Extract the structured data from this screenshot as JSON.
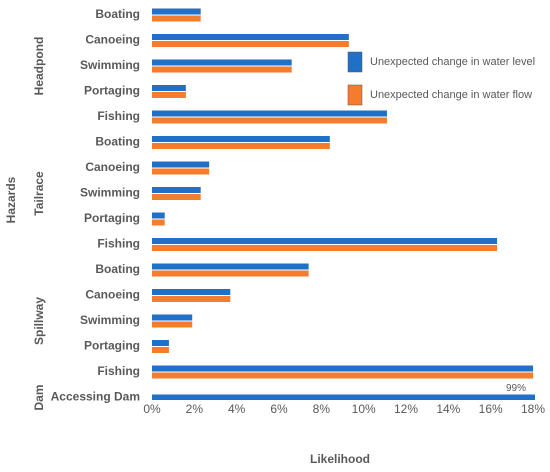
{
  "chart_data": {
    "type": "hbar",
    "y_label": "Hazards",
    "x_label": "Likelihood",
    "groups": [
      {
        "name": "Headpond",
        "categories": [
          "Boating",
          "Canoeing",
          "Swimming",
          "Portaging",
          "Fishing"
        ]
      },
      {
        "name": "Tailrace",
        "categories": [
          "Boating",
          "Canoeing",
          "Swimming",
          "Portaging",
          "Fishing"
        ]
      },
      {
        "name": "Spillway",
        "categories": [
          "Boating",
          "Canoeing",
          "Swimming",
          "Portaging",
          "Fishing"
        ]
      },
      {
        "name": "Dam",
        "categories": [
          "Accessing Dam"
        ]
      }
    ],
    "series": [
      {
        "name": "Unexpected change in water level",
        "color": "#1f70c6",
        "values": [
          2.3,
          9.3,
          6.6,
          1.6,
          11.1,
          8.4,
          2.7,
          2.3,
          0.6,
          16.3,
          7.4,
          3.7,
          1.9,
          0.8,
          18,
          99
        ],
        "value_labels": [
          null,
          null,
          null,
          null,
          null,
          null,
          null,
          null,
          null,
          null,
          null,
          null,
          null,
          null,
          null,
          "99%"
        ]
      },
      {
        "name": "Unexpected change in water flow",
        "color": "#f47c2c",
        "values": [
          2.3,
          9.3,
          6.6,
          1.6,
          11.1,
          8.4,
          2.7,
          2.3,
          0.6,
          16.3,
          7.4,
          3.7,
          1.9,
          0.8,
          18,
          null
        ]
      }
    ],
    "xlim": [
      0,
      18
    ],
    "xticks": [
      {
        "value": 0,
        "label": "0%"
      },
      {
        "value": 2,
        "label": "2%"
      },
      {
        "value": 4,
        "label": "4%"
      },
      {
        "value": 6,
        "label": "6%"
      },
      {
        "value": 8,
        "label": "8%"
      },
      {
        "value": 10,
        "label": "10%"
      },
      {
        "value": 12,
        "label": "12%"
      },
      {
        "value": 14,
        "label": "14%"
      },
      {
        "value": 16,
        "label": "16%"
      },
      {
        "value": 18,
        "label": "18%"
      }
    ],
    "legend": "upper right"
  }
}
